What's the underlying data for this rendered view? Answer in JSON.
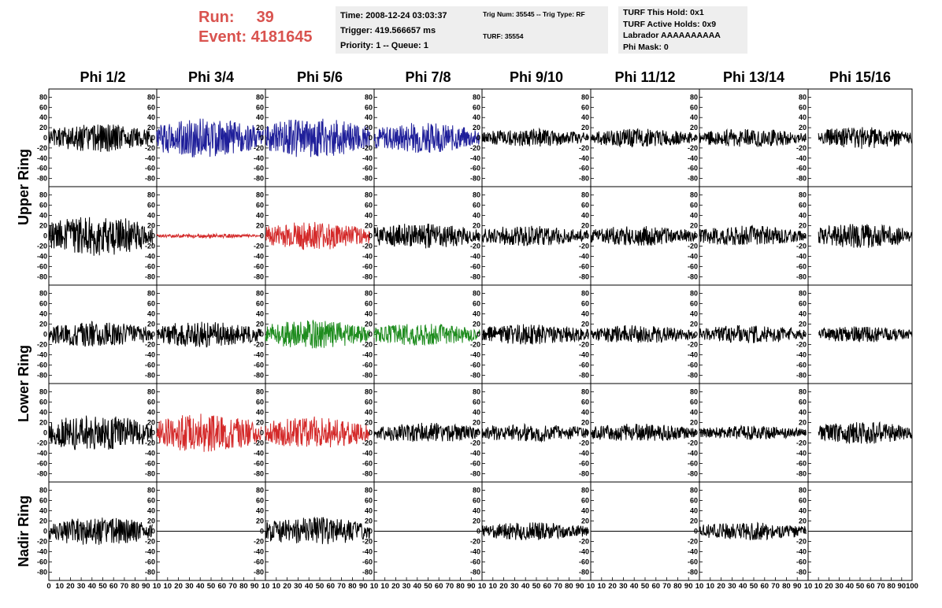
{
  "header": {
    "run_label": "Run:",
    "run_value": "39",
    "event_label": "Event:",
    "event_value": "4181645",
    "time_line": "Time: 2008-12-24 03:03:37",
    "trigger_line": "Trigger: 419.566657 ms",
    "priority_line": "Priority: 1 -- Queue: 1",
    "trig_num_line": "Trig Num: 35545 -- Trig Type: RF",
    "turf_line": "TURF: 35554",
    "turf_hold_line": "TURF This Hold: 0x1",
    "turf_active_line": "TURF Active Holds: 0x9",
    "labrador_line": "Labrador AAAAAAAAAA",
    "phi_mask_line": "Phi Mask: 0"
  },
  "chart_data": {
    "type": "line",
    "columns": [
      "Phi 1/2",
      "Phi 3/4",
      "Phi 5/6",
      "Phi 7/8",
      "Phi 9/10",
      "Phi 11/12",
      "Phi 13/14",
      "Phi 15/16"
    ],
    "rows": [
      "Upper Ring",
      "Upper Ring",
      "Lower Ring",
      "Lower Ring",
      "Nadir Ring"
    ],
    "row_groups": [
      {
        "label": "Upper Ring",
        "rows": [
          0,
          1
        ]
      },
      {
        "label": "Lower Ring",
        "rows": [
          2,
          3
        ]
      },
      {
        "label": "Nadir Ring",
        "rows": [
          4
        ]
      }
    ],
    "ylim": [
      -90,
      90
    ],
    "yticks": [
      -80,
      -60,
      -40,
      -20,
      0,
      20,
      40,
      60,
      80
    ],
    "xlim": [
      0,
      100
    ],
    "xticks": [
      0,
      10,
      20,
      30,
      40,
      50,
      60,
      70,
      80,
      90,
      100
    ],
    "first_panel_xtick_labels": [
      "0",
      "10",
      "20",
      "30",
      "40",
      "50",
      "60",
      "70",
      "80",
      "90",
      "10"
    ],
    "panel_xtick_labels": [
      "10",
      "20",
      "30",
      "40",
      "50",
      "60",
      "70",
      "80",
      "90",
      "10"
    ],
    "last_panel_xtick_labels": [
      "10",
      "20",
      "30",
      "40",
      "50",
      "60",
      "70",
      "80",
      "90",
      "100"
    ],
    "colors": {
      "black": "#000000",
      "blue": "#1f1f9a",
      "red": "#d42a2a",
      "green": "#1e8c1e"
    },
    "traces": [
      [
        {
          "color": "black",
          "amp": 28,
          "x0": 0,
          "x1": 96
        },
        {
          "color": "blue",
          "amp": 40,
          "x0": 0,
          "x1": 98
        },
        {
          "color": "blue",
          "amp": 40,
          "x0": 0,
          "x1": 96
        },
        {
          "color": "blue",
          "amp": 30,
          "x0": 0,
          "x1": 98
        },
        {
          "color": "black",
          "amp": 18,
          "x0": 0,
          "x1": 98
        },
        {
          "color": "black",
          "amp": 18,
          "x0": 0,
          "x1": 97
        },
        {
          "color": "black",
          "amp": 18,
          "x0": 0,
          "x1": 98
        },
        {
          "color": "black",
          "amp": 22,
          "x0": 10,
          "x1": 100
        }
      ],
      [
        {
          "color": "black",
          "amp": 40,
          "x0": 0,
          "x1": 96
        },
        {
          "color": "red",
          "amp": 4,
          "x0": 0,
          "x1": 96
        },
        {
          "color": "red",
          "amp": 28,
          "x0": 0,
          "x1": 96
        },
        {
          "color": "black",
          "amp": 25,
          "x0": 0,
          "x1": 98
        },
        {
          "color": "black",
          "amp": 20,
          "x0": 0,
          "x1": 98
        },
        {
          "color": "black",
          "amp": 20,
          "x0": 0,
          "x1": 97
        },
        {
          "color": "black",
          "amp": 20,
          "x0": 0,
          "x1": 98
        },
        {
          "color": "black",
          "amp": 24,
          "x0": 10,
          "x1": 100
        }
      ],
      [
        {
          "color": "black",
          "amp": 25,
          "x0": 0,
          "x1": 96
        },
        {
          "color": "black",
          "amp": 25,
          "x0": 0,
          "x1": 96
        },
        {
          "color": "green",
          "amp": 28,
          "x0": 0,
          "x1": 96
        },
        {
          "color": "green",
          "amp": 22,
          "x0": 0,
          "x1": 98
        },
        {
          "color": "black",
          "amp": 20,
          "x0": 0,
          "x1": 98
        },
        {
          "color": "black",
          "amp": 18,
          "x0": 0,
          "x1": 97
        },
        {
          "color": "black",
          "amp": 18,
          "x0": 0,
          "x1": 98
        },
        {
          "color": "black",
          "amp": 16,
          "x0": 10,
          "x1": 100
        }
      ],
      [
        {
          "color": "black",
          "amp": 35,
          "x0": 0,
          "x1": 96
        },
        {
          "color": "red",
          "amp": 38,
          "x0": 0,
          "x1": 96
        },
        {
          "color": "red",
          "amp": 32,
          "x0": 0,
          "x1": 96
        },
        {
          "color": "black",
          "amp": 20,
          "x0": 0,
          "x1": 98
        },
        {
          "color": "black",
          "amp": 18,
          "x0": 0,
          "x1": 98
        },
        {
          "color": "black",
          "amp": 18,
          "x0": 0,
          "x1": 97
        },
        {
          "color": "black",
          "amp": 14,
          "x0": 0,
          "x1": 98
        },
        {
          "color": "black",
          "amp": 22,
          "x0": 10,
          "x1": 100
        }
      ],
      [
        {
          "color": "black",
          "amp": 28,
          "x0": 0,
          "x1": 96
        },
        {
          "color": "flat",
          "amp": 0,
          "x0": 0,
          "x1": 100
        },
        {
          "color": "black",
          "amp": 28,
          "x0": 0,
          "x1": 96
        },
        {
          "color": "flat",
          "amp": 0,
          "x0": 0,
          "x1": 100
        },
        {
          "color": "black",
          "amp": 18,
          "x0": 0,
          "x1": 98
        },
        {
          "color": "flat",
          "amp": 0,
          "x0": 0,
          "x1": 100
        },
        {
          "color": "black",
          "amp": 18,
          "x0": 0,
          "x1": 98
        },
        {
          "color": "flat",
          "amp": 0,
          "x0": 0,
          "x1": 100
        }
      ]
    ]
  }
}
